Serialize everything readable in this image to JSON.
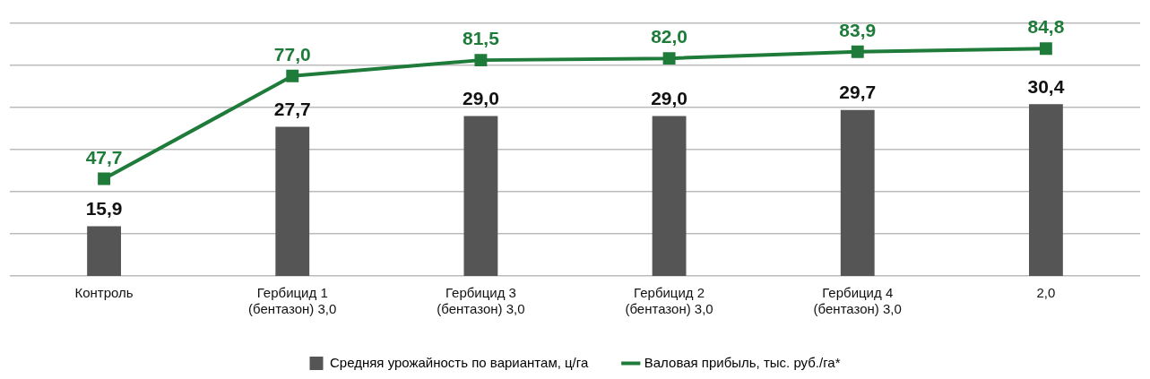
{
  "chart_data": {
    "type": "bar",
    "categories": [
      "Контроль",
      "Гербицид 1 (бентазон) 3,0",
      "Гербицид 3 (бентазон) 3,0",
      "Гербицид 2 (бентазон) 3,0",
      "Гербицид 4 (бентазон) 3,0",
      "2,0"
    ],
    "series": [
      {
        "name": "Средняя урожайность по вариантам, ц/га",
        "color": "#555555",
        "values": [
          15.9,
          27.7,
          29.0,
          29.0,
          29.7,
          30.4
        ],
        "value_labels": [
          "15,9",
          "27,7",
          "29,0",
          "29,0",
          "29,7",
          "30,4"
        ]
      },
      {
        "name": "Валовая прибыль, тыс. руб./га*",
        "type": "line",
        "axis": "y2",
        "color": "#1e7b3a",
        "marker": "square",
        "values": [
          47.7,
          77.0,
          81.5,
          82.0,
          83.9,
          84.8
        ],
        "value_labels": [
          "47,7",
          "77,0",
          "81,5",
          "82,0",
          "83,9",
          "84,8"
        ]
      }
    ],
    "ylim": [
      10,
      40
    ],
    "yticks": [
      {
        "value": 10,
        "label": null
      },
      {
        "value": 15,
        "label": null
      },
      {
        "value": 20,
        "label": null
      },
      {
        "value": 25,
        "label": null
      },
      {
        "value": 30,
        "label": null
      },
      {
        "value": 35,
        "label": null
      },
      {
        "value": 40,
        "label": null
      }
    ],
    "y2lim": [
      20,
      92
    ],
    "grid": "y",
    "tick_labels": "x",
    "legend": "bottom"
  }
}
